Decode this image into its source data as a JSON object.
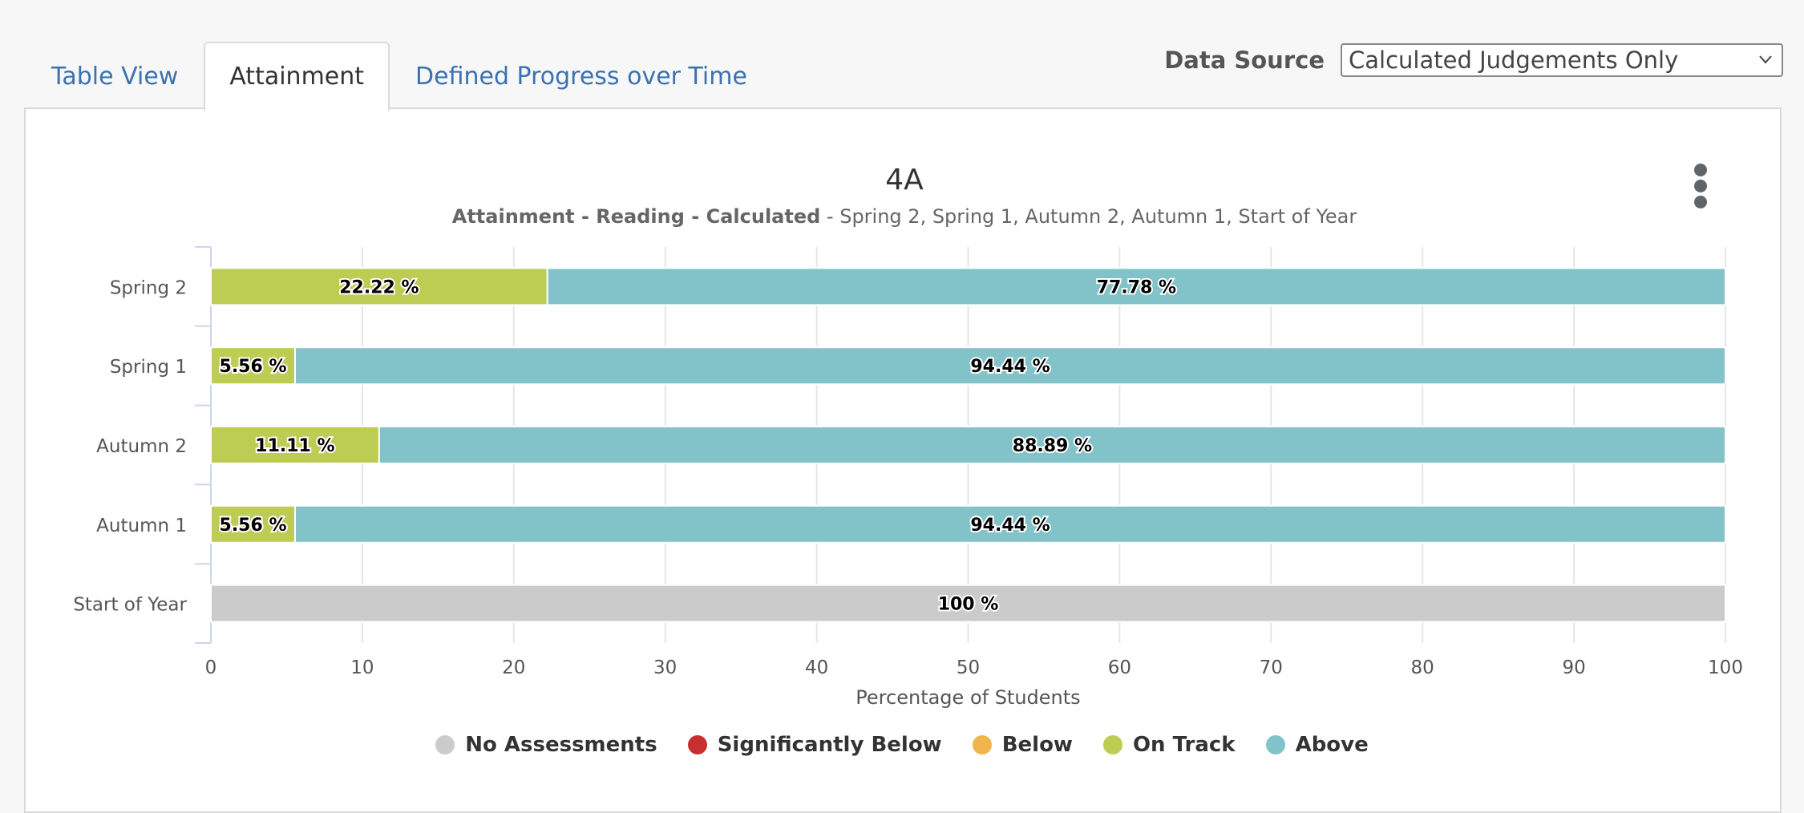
{
  "tabs": [
    {
      "label": "Table View",
      "active": false
    },
    {
      "label": "Attainment",
      "active": true
    },
    {
      "label": "Defined Progress over Time",
      "active": false
    }
  ],
  "data_source": {
    "label": "Data Source",
    "value": "Calculated Judgements Only"
  },
  "chart_data": {
    "type": "bar",
    "orientation": "horizontal",
    "stacked": "percent",
    "title": "4A",
    "subtitle_bold": "Attainment - Reading - Calculated",
    "subtitle_rest": " - Spring 2, Spring 1, Autumn 2, Autumn 1, Start of Year",
    "categories": [
      "Spring 2",
      "Spring 1",
      "Autumn 2",
      "Autumn 1",
      "Start of Year"
    ],
    "xlabel": "Percentage of Students",
    "xlim": [
      0,
      100
    ],
    "xticks": [
      0,
      10,
      20,
      30,
      40,
      50,
      60,
      70,
      80,
      90,
      100
    ],
    "grid": true,
    "legend_position": "bottom",
    "series": [
      {
        "name": "No Assessments",
        "color": "#cbcbcb",
        "values": [
          0,
          0,
          0,
          0,
          100
        ],
        "labels": [
          "",
          "",
          "",
          "",
          "100 %"
        ]
      },
      {
        "name": "Significantly Below",
        "color": "#c8302f",
        "values": [
          0,
          0,
          0,
          0,
          0
        ],
        "labels": [
          "",
          "",
          "",
          "",
          ""
        ]
      },
      {
        "name": "Below",
        "color": "#efb54c",
        "values": [
          0,
          0,
          0,
          0,
          0
        ],
        "labels": [
          "",
          "",
          "",
          "",
          ""
        ]
      },
      {
        "name": "On Track",
        "color": "#bdcc52",
        "values": [
          22.22,
          5.56,
          11.11,
          5.56,
          0
        ],
        "labels": [
          "22.22 %",
          "5.56 %",
          "11.11 %",
          "5.56 %",
          ""
        ]
      },
      {
        "name": "Above",
        "color": "#82c2c9",
        "values": [
          77.78,
          94.44,
          88.89,
          94.44,
          0
        ],
        "labels": [
          "77.78 %",
          "94.44 %",
          "88.89 %",
          "94.44 %",
          ""
        ]
      }
    ]
  }
}
